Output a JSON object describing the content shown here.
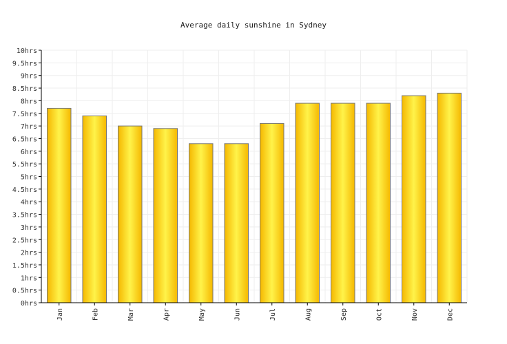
{
  "chart_data": {
    "type": "bar",
    "title": "Average daily sunshine in Sydney",
    "xlabel": "",
    "ylabel": "",
    "categories": [
      "Jan",
      "Feb",
      "Mar",
      "Apr",
      "May",
      "Jun",
      "Jul",
      "Aug",
      "Sep",
      "Oct",
      "Nov",
      "Dec"
    ],
    "values": [
      7.7,
      7.4,
      7.0,
      6.9,
      6.3,
      6.3,
      7.1,
      7.9,
      7.9,
      7.9,
      8.2,
      8.3
    ],
    "ylim": [
      0,
      10
    ],
    "yticks": [
      "0hrs",
      "0.5hrs",
      "1hrs",
      "1.5hrs",
      "2hrs",
      "2.5hrs",
      "3hrs",
      "3.5hrs",
      "4hrs",
      "4.5hrs",
      "5hrs",
      "5.5hrs",
      "6hrs",
      "6.5hrs",
      "7hrs",
      "7.5hrs",
      "8hrs",
      "8.5hrs",
      "9hrs",
      "9.5hrs",
      "10hrs"
    ],
    "grid": true,
    "legend": "none",
    "colors": {
      "bar_light": "#fff34a",
      "bar_dark": "#f5b800",
      "bar_stroke": "#777777",
      "grid": "#eeeeee",
      "axis": "#000000"
    }
  }
}
